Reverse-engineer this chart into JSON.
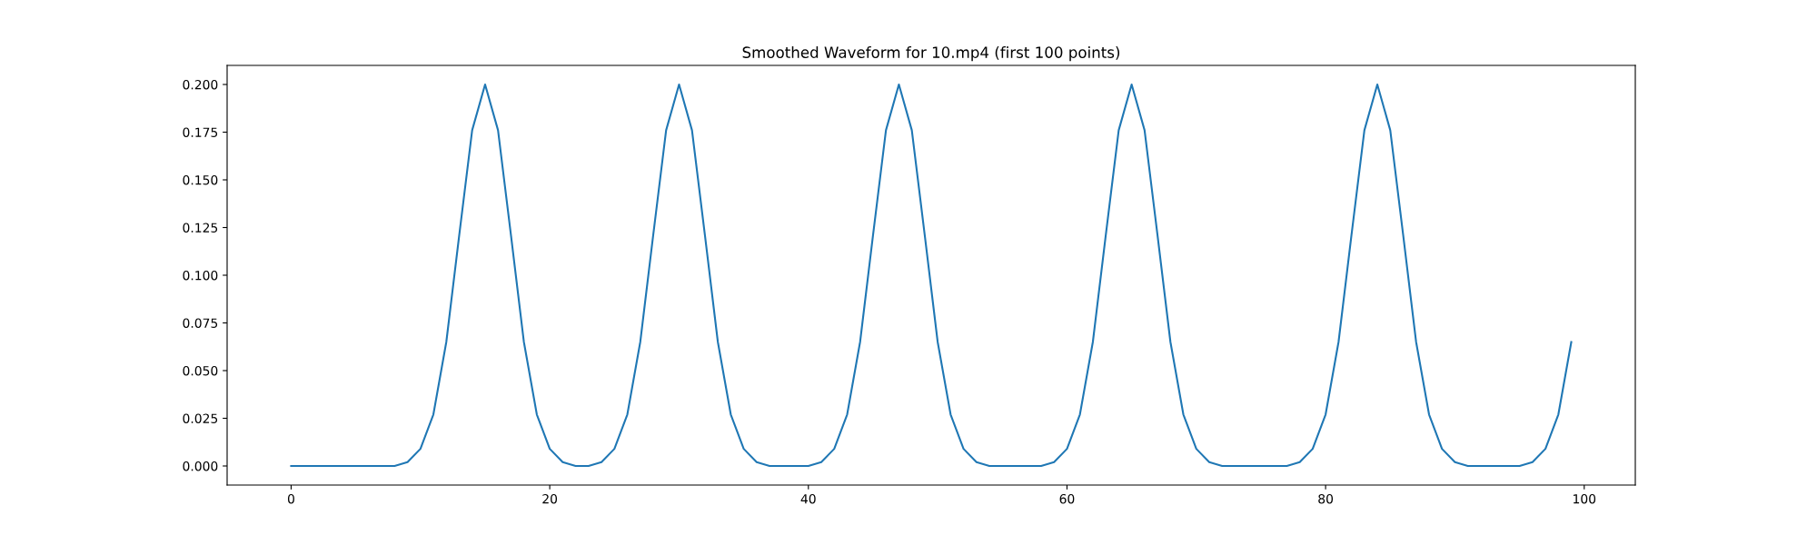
{
  "chart_data": {
    "type": "line",
    "title": "Smoothed Waveform for 10.mp4 (first 100 points)",
    "x": [
      0,
      1,
      2,
      3,
      4,
      5,
      6,
      7,
      8,
      9,
      10,
      11,
      12,
      13,
      14,
      15,
      16,
      17,
      18,
      19,
      20,
      21,
      22,
      23,
      24,
      25,
      26,
      27,
      28,
      29,
      30,
      31,
      32,
      33,
      34,
      35,
      36,
      37,
      38,
      39,
      40,
      41,
      42,
      43,
      44,
      45,
      46,
      47,
      48,
      49,
      50,
      51,
      52,
      53,
      54,
      55,
      56,
      57,
      58,
      59,
      60,
      61,
      62,
      63,
      64,
      65,
      66,
      67,
      68,
      69,
      70,
      71,
      72,
      73,
      74,
      75,
      76,
      77,
      78,
      79,
      80,
      81,
      82,
      83,
      84,
      85,
      86,
      87,
      88,
      89,
      90,
      91,
      92,
      93,
      94,
      95,
      96,
      97,
      98,
      99
    ],
    "series": [
      {
        "color": "#1f77b4",
        "values": [
          0,
          0,
          0,
          0,
          0,
          0,
          0,
          0,
          0,
          0.002,
          0.009,
          0.027,
          0.065,
          0.121,
          0.176,
          0.2,
          0.176,
          0.121,
          0.065,
          0.027,
          0.009,
          0.002,
          0,
          0,
          0.002,
          0.009,
          0.027,
          0.065,
          0.121,
          0.176,
          0.2,
          0.176,
          0.121,
          0.065,
          0.027,
          0.009,
          0.002,
          0,
          0,
          0,
          0,
          0.002,
          0.009,
          0.027,
          0.065,
          0.121,
          0.176,
          0.2,
          0.176,
          0.121,
          0.065,
          0.027,
          0.009,
          0.002,
          0,
          0,
          0,
          0,
          0,
          0.002,
          0.009,
          0.027,
          0.065,
          0.121,
          0.176,
          0.2,
          0.176,
          0.121,
          0.065,
          0.027,
          0.009,
          0.002,
          0,
          0,
          0,
          0,
          0,
          0,
          0.002,
          0.009,
          0.027,
          0.065,
          0.121,
          0.176,
          0.2,
          0.176,
          0.121,
          0.065,
          0.027,
          0.009,
          0.002,
          0,
          0,
          0,
          0,
          0,
          0.002,
          0.009,
          0.027,
          0.065
        ]
      }
    ],
    "xlim": [
      -4.95,
      103.95
    ],
    "ylim": [
      -0.01,
      0.21
    ],
    "xticks": [
      0,
      20,
      40,
      60,
      80,
      100
    ],
    "yticks": [
      {
        "value": 0,
        "label": "0.000"
      },
      {
        "value": 0.025,
        "label": "0.025"
      },
      {
        "value": 0.05,
        "label": "0.050"
      },
      {
        "value": 0.075,
        "label": "0.075"
      },
      {
        "value": 0.1,
        "label": "0.100"
      },
      {
        "value": 0.125,
        "label": "0.125"
      },
      {
        "value": 0.15,
        "label": "0.150"
      },
      {
        "value": 0.175,
        "label": "0.175"
      },
      {
        "value": 0.2,
        "label": "0.200"
      }
    ],
    "grid": false,
    "marker": "none",
    "line_style": "solid"
  }
}
